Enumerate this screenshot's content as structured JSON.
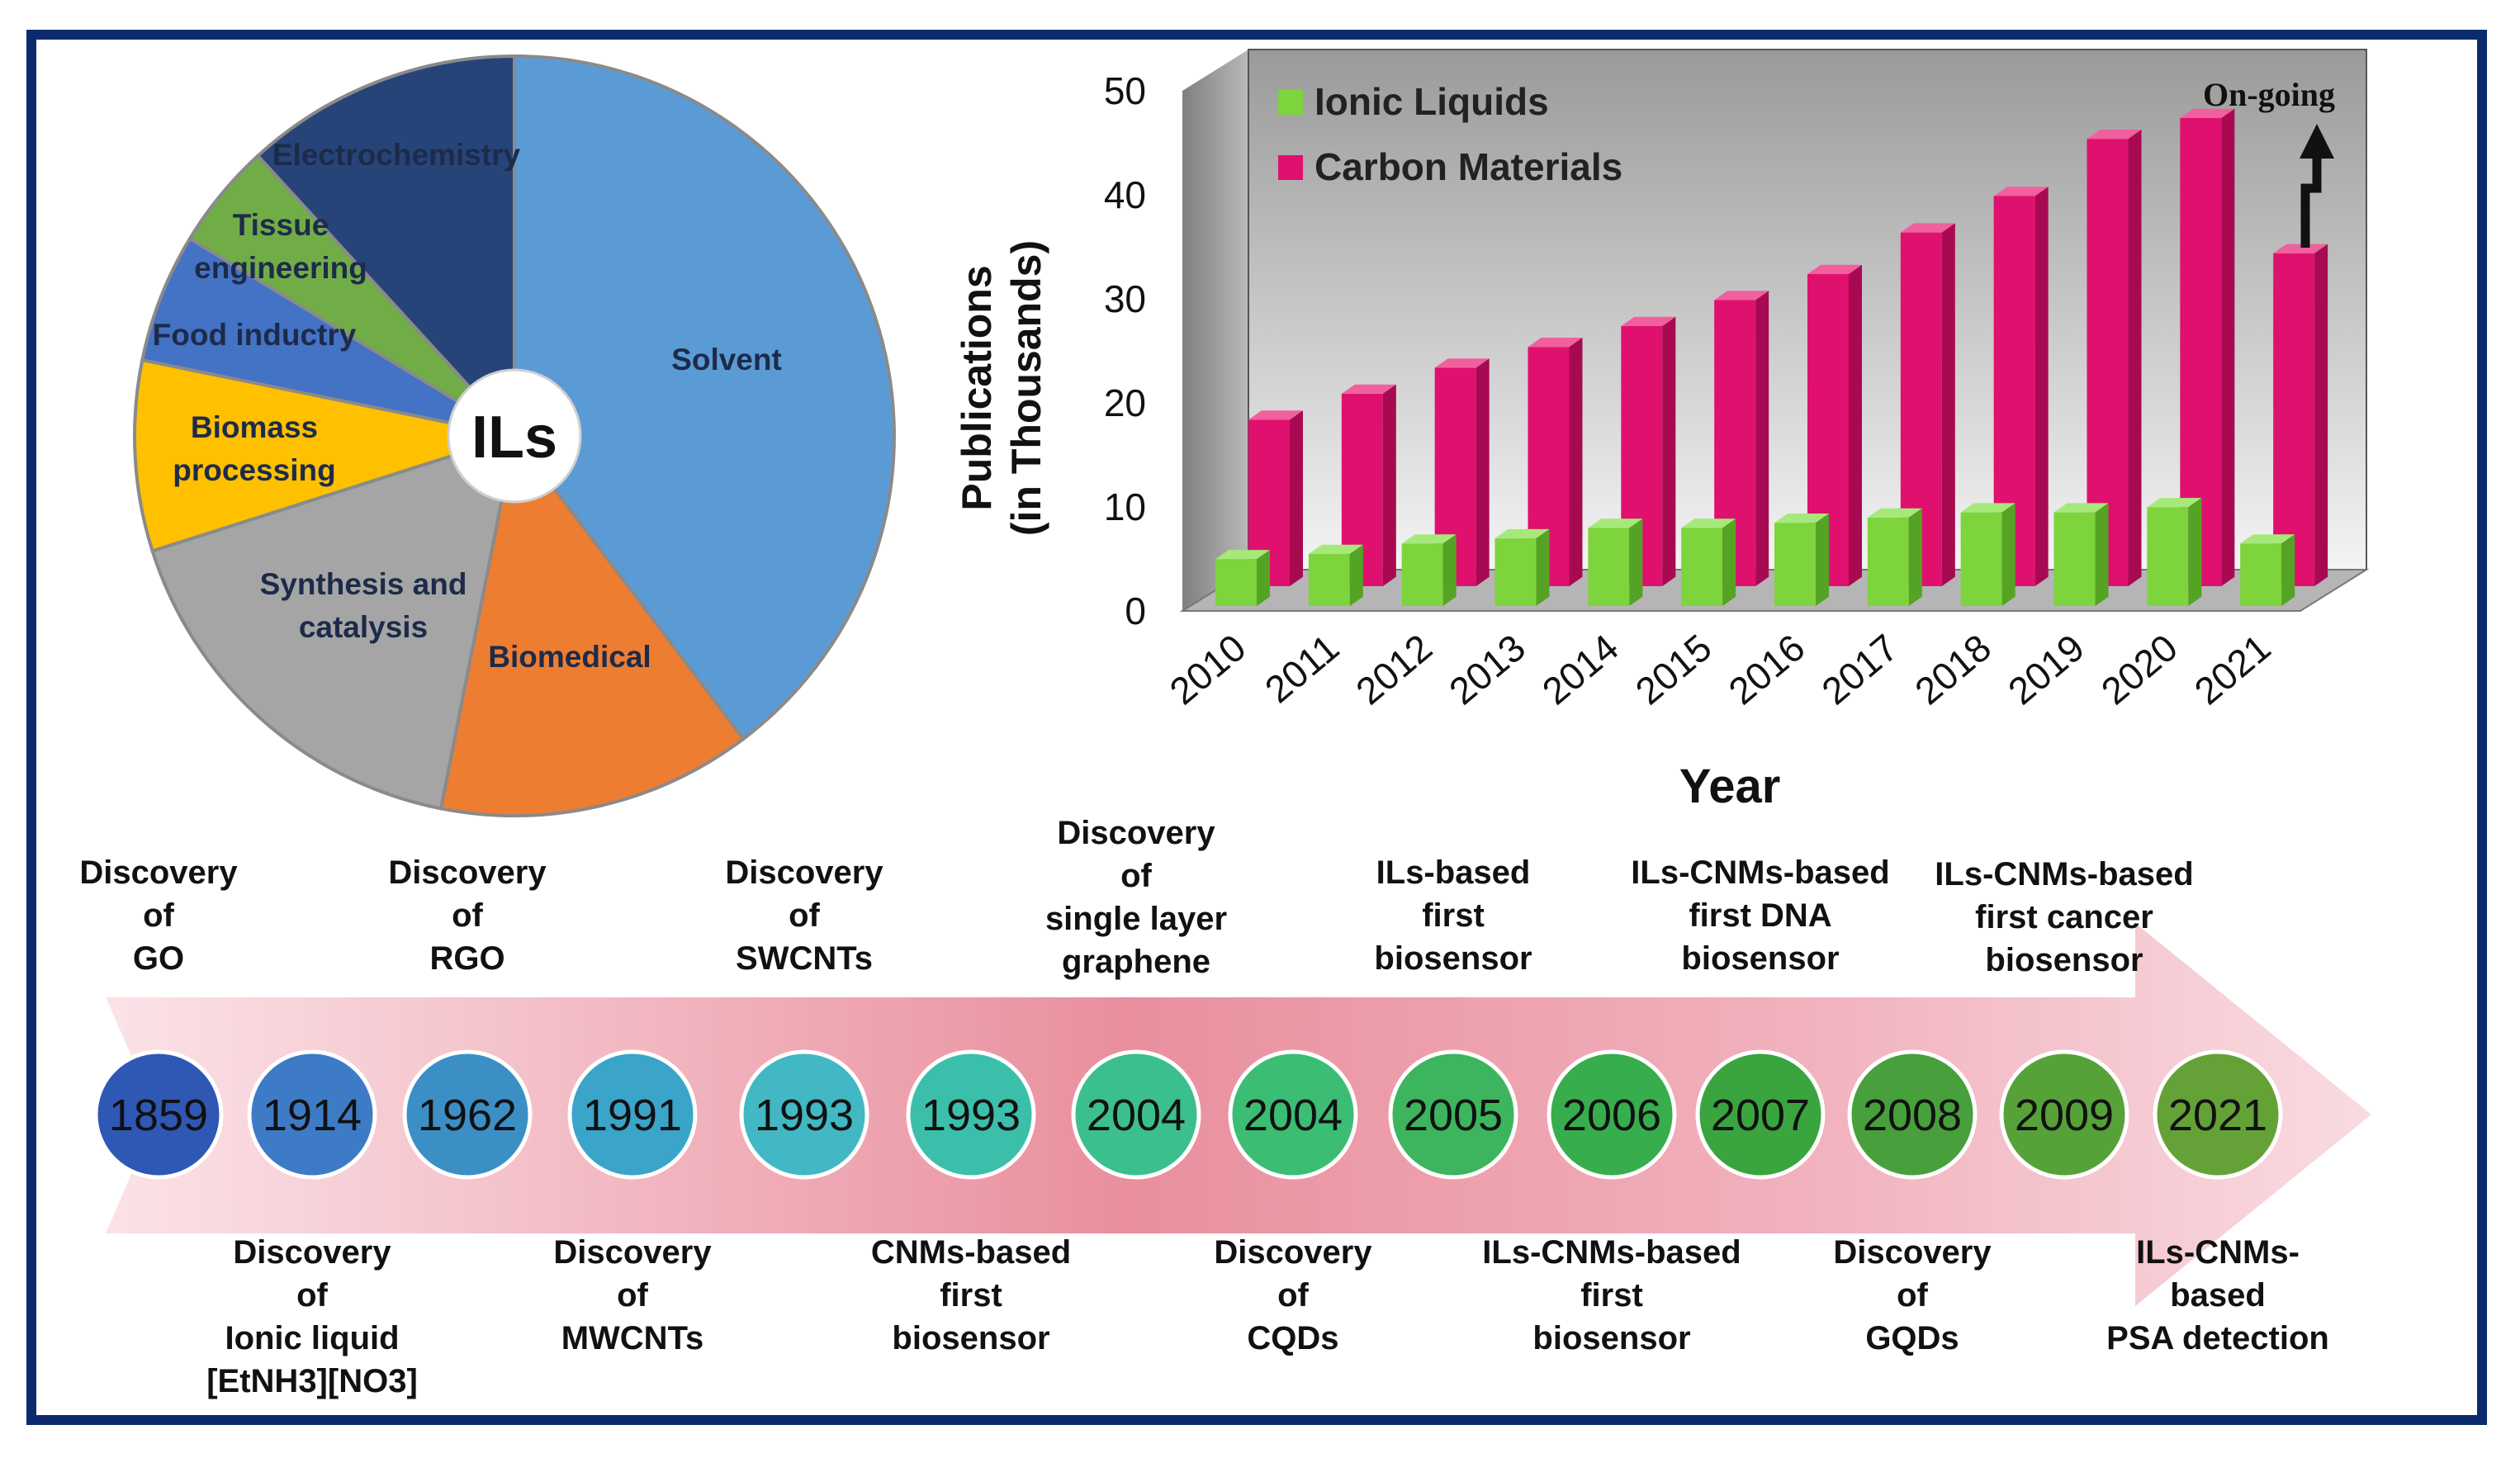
{
  "pie": {
    "center_label": "ILs",
    "slices": [
      {
        "label": "Solvent",
        "value": 39.7,
        "color": "#5b9bd5"
      },
      {
        "label": "Biomedical",
        "value": 13.4,
        "color": "#ed7d31"
      },
      {
        "label": "Synthesis and catalysis",
        "value": 17.0,
        "color": "#a5a5a5"
      },
      {
        "label": "Biomass processing",
        "value": 8.1,
        "color": "#ffc000"
      },
      {
        "label": "Food inductry",
        "value": 5.5,
        "color": "#4472c4"
      },
      {
        "label": "Tissue engineering",
        "value": 4.5,
        "color": "#70ad47"
      },
      {
        "label": "Electrochemistry",
        "value": 11.8,
        "color": "#264478"
      }
    ]
  },
  "chart_data": {
    "type": "bar",
    "title": "",
    "xlabel": "Year",
    "ylabel": "Publications (in Thousands)",
    "ylim": [
      0,
      50
    ],
    "yticks": [
      0,
      10,
      20,
      30,
      40,
      50
    ],
    "categories": [
      "2010",
      "2011",
      "2012",
      "2013",
      "2014",
      "2015",
      "2016",
      "2017",
      "2018",
      "2019",
      "2020",
      "2021"
    ],
    "series": [
      {
        "name": "Ionic Liquids",
        "color": "#7dd43c",
        "values": [
          4.5,
          5,
          6,
          6.5,
          7.5,
          7.5,
          8,
          8.5,
          9,
          9,
          9.5,
          6
        ]
      },
      {
        "name": "Carbon Materials",
        "color": "#e0106e",
        "values": [
          16,
          18.5,
          21,
          23,
          25,
          27.5,
          30,
          34,
          37.5,
          43,
          45,
          32
        ]
      }
    ],
    "annotation": "On-going",
    "legend_position": "top-left"
  },
  "timeline": {
    "years": [
      "1859",
      "1914",
      "1962",
      "1991",
      "1993",
      "1993",
      "2004",
      "2004",
      "2005",
      "2006",
      "2007",
      "2008",
      "2009",
      "2021"
    ],
    "colors": [
      "#2e58b4",
      "#3e7bc6",
      "#3b8fc5",
      "#3aa4c9",
      "#41b8c3",
      "#3bbfaa",
      "#3cbf8f",
      "#3bbd74",
      "#3cb55e",
      "#38ad4d",
      "#3aa43f",
      "#47a03b",
      "#57a139",
      "#64a137"
    ],
    "events": [
      {
        "lines": [
          "Discovery",
          "of",
          "GO"
        ]
      },
      {
        "lines": [
          "Discovery",
          "of",
          "Ionic liquid",
          "[EtNH3][NO3]"
        ]
      },
      {
        "lines": [
          "Discovery",
          "of",
          "RGO"
        ]
      },
      {
        "lines": [
          "Discovery",
          "of",
          "MWCNTs"
        ]
      },
      {
        "lines": [
          "Discovery",
          "of",
          "SWCNTs"
        ]
      },
      {
        "lines": [
          "CNMs-based",
          "first",
          "biosensor"
        ]
      },
      {
        "lines": [
          "Discovery",
          "of",
          "single layer",
          "graphene"
        ]
      },
      {
        "lines": [
          "Discovery",
          "of",
          "CQDs"
        ]
      },
      {
        "lines": [
          "ILs-based",
          "first",
          "biosensor"
        ]
      },
      {
        "lines": [
          "ILs-CNMs-based",
          "first",
          "biosensor"
        ]
      },
      {
        "lines": [
          "ILs-CNMs-based",
          "first DNA",
          "biosensor"
        ]
      },
      {
        "lines": [
          "Discovery",
          "of",
          "GQDs"
        ]
      },
      {
        "lines": [
          "ILs-CNMs-based",
          "first cancer",
          "biosensor"
        ]
      },
      {
        "lines": [
          "ILs-CNMs-",
          "based",
          "PSA detection"
        ]
      }
    ]
  }
}
